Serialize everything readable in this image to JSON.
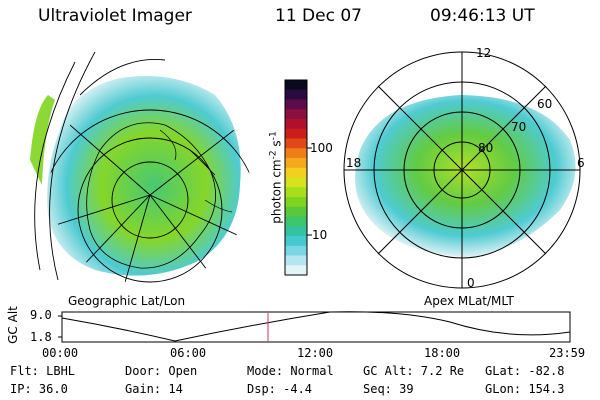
{
  "header": {
    "instrument": "Ultraviolet Imager",
    "date": "11 Dec 07",
    "time": "09:46:13 UT"
  },
  "left_map": {
    "label": "Geographic Lat/Lon"
  },
  "right_map": {
    "label": "Apex MLat/MLT",
    "mlt_labels": [
      "12",
      "18",
      "6",
      "0"
    ],
    "lat_labels": [
      "60",
      "70",
      "80"
    ]
  },
  "colorbar": {
    "unit_label": "photon cm",
    "unit_sup1": "-2",
    "unit_mid": "s",
    "unit_sup2": "-1",
    "ticks": [
      "100",
      "10"
    ],
    "colors": [
      "#0a0a1e",
      "#2a0b3d",
      "#5a0d4a",
      "#8a1040",
      "#b0102c",
      "#cc1d1d",
      "#e04818",
      "#ef7e1a",
      "#f5a81c",
      "#f2d020",
      "#d6e21e",
      "#a9de1c",
      "#7fd41e",
      "#5ac83a",
      "#3ec66c",
      "#33c2a2",
      "#45c8cf",
      "#7bd6e4",
      "#b5e6ef",
      "#e4f3f7"
    ]
  },
  "timeline": {
    "y_label": "GC Alt",
    "y_ticks": [
      "9.0",
      "1.8"
    ],
    "x_ticks": [
      "00:00",
      "06:00",
      "12:00",
      "18:00",
      "23:59"
    ],
    "marker_color": "#d0306a"
  },
  "footer": {
    "rows": [
      [
        "Flt: LBHL",
        "Door: Open",
        "Mode: Normal",
        "GC Alt: 7.2 Re",
        "GLat: -82.8"
      ],
      [
        "IP: 36.0",
        "Gain: 14",
        "Dsp:   -4.4",
        "Seq: 39",
        "GLon: 154.3"
      ]
    ]
  }
}
